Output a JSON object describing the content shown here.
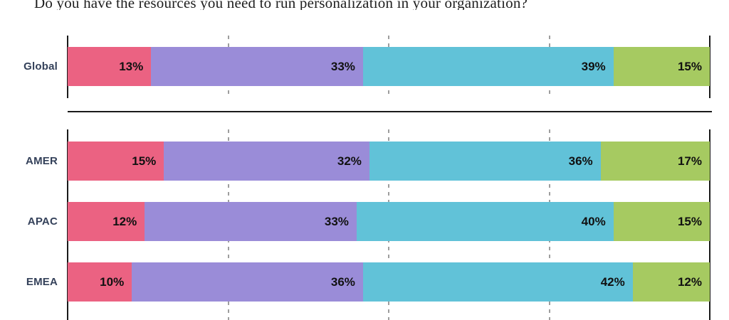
{
  "title": "Do you have the resources you need to run personalization in your organization?",
  "colors": {
    "segment_1": "#EB6282",
    "segment_2": "#9A8CD8",
    "segment_3": "#61C2D8",
    "segment_4": "#A6CA61",
    "category_label": "#34415A",
    "value_label": "#111111",
    "axis": "#1A1A1A",
    "gridline": "#9E9E9E"
  },
  "chart_data": {
    "type": "bar",
    "stacked": true,
    "orientation": "horizontal",
    "unit": "%",
    "title": "Do you have the resources you need to run personalization in your organization?",
    "xlim": [
      0,
      100
    ],
    "gridlines_percent": [
      25,
      50,
      75
    ],
    "legend": "none",
    "segment_colors": [
      "#EB6282",
      "#9A8CD8",
      "#61C2D8",
      "#A6CA61"
    ],
    "sections": [
      [
        "Global"
      ],
      [
        "AMER",
        "APAC",
        "EMEA"
      ]
    ],
    "groups": [
      {
        "category": "Global",
        "values": [
          13,
          33,
          39,
          15
        ]
      },
      {
        "category": "AMER",
        "values": [
          15,
          32,
          36,
          17
        ]
      },
      {
        "category": "APAC",
        "values": [
          12,
          33,
          40,
          15
        ]
      },
      {
        "category": "EMEA",
        "values": [
          10,
          36,
          42,
          12
        ]
      }
    ]
  }
}
